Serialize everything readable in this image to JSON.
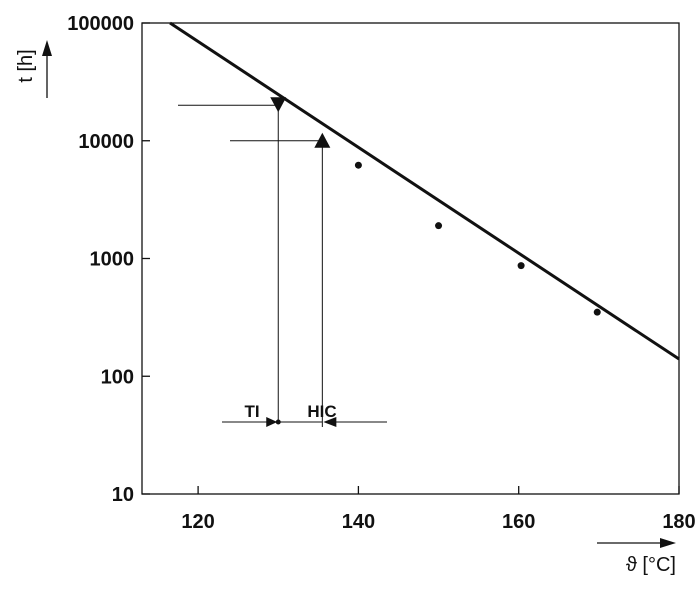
{
  "chart_data": {
    "type": "scatter",
    "xlabel": "ϑ [°C]",
    "ylabel": "t [h]",
    "xlim": [
      113,
      180
    ],
    "ylim": [
      10,
      100000
    ],
    "yscale": "log",
    "grid": false,
    "x_ticks": [
      120,
      140,
      160,
      180
    ],
    "x_tick_labels": [
      "120",
      "140",
      "160",
      "180"
    ],
    "y_ticks": [
      10,
      100,
      1000,
      10000,
      100000
    ],
    "y_tick_labels": [
      "10",
      "100",
      "1000",
      "10000",
      "100000"
    ],
    "points": [
      {
        "x": 140,
        "y": 6200
      },
      {
        "x": 150,
        "y": 1900
      },
      {
        "x": 160.3,
        "y": 870
      },
      {
        "x": 169.8,
        "y": 350
      }
    ],
    "fit_line": {
      "x": [
        116.5,
        180
      ],
      "y": [
        100000,
        140
      ]
    },
    "markers": [
      {
        "name": "TI",
        "x": 130,
        "y": 20000,
        "shape": "triangle-down"
      },
      {
        "name": "HIC",
        "x": 135.5,
        "y": 10000,
        "shape": "triangle-up"
      }
    ],
    "annotations": [
      {
        "text": "TI",
        "x": 130
      },
      {
        "text": "HIC",
        "x": 135.5
      }
    ]
  }
}
